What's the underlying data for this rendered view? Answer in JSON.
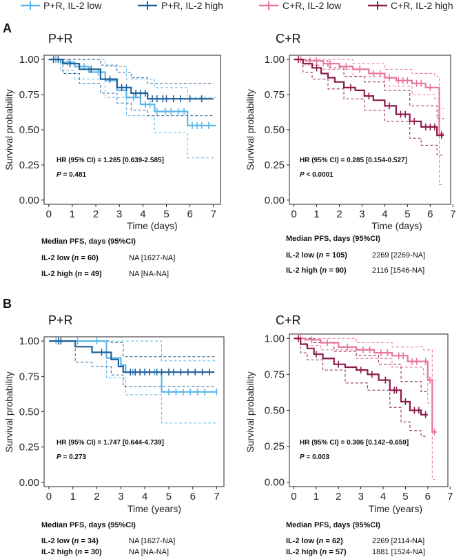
{
  "colors": {
    "pr_low": "#5bb6e8",
    "pr_high": "#1f5f97",
    "cr_low": "#e8739e",
    "cr_high": "#8b1a4a"
  },
  "legend": [
    {
      "label": "P+R, IL-2 low",
      "color": "#5bb6e8"
    },
    {
      "label": "P+R, IL-2 high",
      "color": "#1f5f97"
    },
    {
      "label": "C+R, IL-2 low",
      "color": "#e8739e"
    },
    {
      "label": "C+R, IL-2 high",
      "color": "#8b1a4a"
    }
  ],
  "panel_labels": [
    "A",
    "B"
  ],
  "chart_data": [
    {
      "type": "line",
      "id": "a_pr",
      "title": "P+R",
      "xlabel": "Time (days)",
      "ylabel": "Survival probability",
      "xlim": [
        -0.2,
        7.3
      ],
      "ylim": [
        -0.03,
        1.03
      ],
      "xticks": [
        0,
        1,
        2,
        3,
        4,
        5,
        6,
        7
      ],
      "yticks": [
        "0.00",
        "0.25",
        "0.50",
        "0.75",
        "1.00"
      ],
      "hr_text": "HR (95% CI) = 1.285 [0.639-2.585]",
      "p_label": "P",
      "p_text": " = 0.481",
      "median_title": "Median PFS, days  (95%CI)",
      "median_rows": [
        {
          "group": "IL-2 low (",
          "n": "n",
          "count": " = 60)",
          "value": "NA [1627-NA]"
        },
        {
          "group": "IL-2 high (",
          "n": "n",
          "count": " = 49)",
          "value": "NA [NA-NA]"
        }
      ],
      "series": [
        {
          "name": "P+R, IL-2 low",
          "color": "#5bb6e8",
          "width": 2.2,
          "x": [
            0,
            0.5,
            1.1,
            1.7,
            2.4,
            2.9,
            3.3,
            3.9,
            4.5,
            4.8,
            5.9,
            7.1
          ],
          "y": [
            1.0,
            0.98,
            0.95,
            0.91,
            0.85,
            0.78,
            0.73,
            0.68,
            0.63,
            0.63,
            0.53,
            0.53
          ],
          "censor": [
            0.3,
            0.8,
            1.5,
            2.1,
            3.6,
            4.1,
            4.3,
            4.6,
            4.95,
            5.2,
            5.5,
            5.75,
            6.1,
            6.3,
            6.5,
            6.8
          ]
        },
        {
          "name": "P+R, IL-2 high",
          "color": "#1f5f97",
          "width": 2.2,
          "x": [
            0,
            0.6,
            1.3,
            2.2,
            2.9,
            3.5,
            4.2,
            7.0
          ],
          "y": [
            1.0,
            0.97,
            0.93,
            0.86,
            0.8,
            0.76,
            0.72,
            0.72
          ],
          "censor": [
            0.2,
            0.4,
            0.9,
            1.8,
            2.6,
            3.1,
            3.3,
            3.7,
            3.9,
            4.1,
            4.4,
            4.6,
            4.85,
            5.0,
            5.3,
            5.6,
            6.0,
            6.5
          ]
        },
        {
          "name": "low CI upper",
          "color": "#5bb6e8",
          "width": 1,
          "dash": true,
          "x": [
            0,
            1.1,
            2.4,
            3.3,
            4.5,
            5.9,
            7.1
          ],
          "y": [
            1.0,
            1.0,
            0.95,
            0.86,
            0.8,
            0.73,
            0.73
          ]
        },
        {
          "name": "low CI lower",
          "color": "#5bb6e8",
          "width": 1,
          "dash": true,
          "x": [
            0,
            0.5,
            1.1,
            2.4,
            3.3,
            4.5,
            5.9,
            7.1
          ],
          "y": [
            1.0,
            0.92,
            0.86,
            0.73,
            0.6,
            0.48,
            0.3,
            0.3
          ]
        },
        {
          "name": "high CI upper",
          "color": "#1f5f97",
          "width": 1,
          "dash": true,
          "x": [
            0,
            1.3,
            2.2,
            2.9,
            3.5,
            4.2,
            7.0
          ],
          "y": [
            1.0,
            1.0,
            0.96,
            0.91,
            0.87,
            0.83,
            0.83
          ]
        },
        {
          "name": "high CI lower",
          "color": "#1f5f97",
          "width": 1,
          "dash": true,
          "x": [
            0,
            0.6,
            1.3,
            2.2,
            2.9,
            3.5,
            4.2,
            7.0
          ],
          "y": [
            1.0,
            0.9,
            0.83,
            0.76,
            0.69,
            0.64,
            0.6,
            0.6
          ]
        }
      ]
    },
    {
      "type": "line",
      "id": "a_cr",
      "title": "C+R",
      "xlabel": "Time (days)",
      "ylabel": "Survival probability",
      "xlim": [
        -0.2,
        6.9
      ],
      "ylim": [
        -0.03,
        1.03
      ],
      "xticks": [
        0,
        1,
        2,
        3,
        4,
        5,
        6,
        7
      ],
      "yticks": [
        "0.00",
        "0.25",
        "0.50",
        "0.75",
        "1.00"
      ],
      "hr_text": "HR (95% CI) = 0.285 [0.154-0.527]",
      "p_label": "P",
      "p_text": " < 0.0001",
      "median_title": "Median PFS, days (95%CI)",
      "median_rows": [
        {
          "group": "IL-2 low (",
          "n": "n",
          "count": " = 105)",
          "value": "2269 [2269-NA]"
        },
        {
          "group": "IL-2 high (",
          "n": "n",
          "count": " = 90)",
          "value": "2116 [1546-NA]"
        }
      ],
      "series": [
        {
          "name": "C+R, IL-2 low",
          "color": "#e8739e",
          "width": 2.2,
          "x": [
            0,
            0.5,
            1.3,
            2.0,
            2.6,
            3.3,
            4.0,
            4.5,
            5.2,
            5.8,
            6.2,
            6.4,
            6.6
          ],
          "y": [
            1.0,
            0.99,
            0.97,
            0.95,
            0.93,
            0.9,
            0.87,
            0.85,
            0.83,
            0.8,
            0.8,
            0.47,
            0.47
          ],
          "censor": [
            0.3,
            0.7,
            1.0,
            1.6,
            2.3,
            2.9,
            3.5,
            3.8,
            4.2,
            4.6,
            4.8,
            5.0,
            5.4,
            5.6,
            6.0,
            6.5
          ]
        },
        {
          "name": "C+R, IL-2 high",
          "color": "#8b1a4a",
          "width": 2.2,
          "x": [
            0,
            0.4,
            0.8,
            1.2,
            1.5,
            1.8,
            2.2,
            2.7,
            3.1,
            3.5,
            4.0,
            4.5,
            5.1,
            5.6,
            6.3,
            6.6
          ],
          "y": [
            1.0,
            0.97,
            0.94,
            0.9,
            0.87,
            0.84,
            0.8,
            0.78,
            0.74,
            0.71,
            0.67,
            0.61,
            0.56,
            0.52,
            0.46,
            0.46
          ],
          "censor": [
            0.2,
            1.0,
            2.5,
            3.3,
            4.2,
            4.7,
            4.9,
            5.3,
            5.8,
            6.0,
            6.2,
            6.5
          ]
        },
        {
          "name": "low CI upper",
          "color": "#e8739e",
          "width": 1,
          "dash": true,
          "x": [
            0,
            1.3,
            2.6,
            4.0,
            5.2,
            6.2,
            6.4,
            6.6
          ],
          "y": [
            1.0,
            1.0,
            0.97,
            0.93,
            0.9,
            0.88,
            0.65,
            0.65
          ]
        },
        {
          "name": "low CI lower",
          "color": "#e8739e",
          "width": 1,
          "dash": true,
          "x": [
            0,
            0.5,
            1.3,
            2.6,
            4.0,
            5.2,
            6.2,
            6.4,
            6.6
          ],
          "y": [
            1.0,
            0.96,
            0.93,
            0.88,
            0.81,
            0.75,
            0.72,
            0.11,
            0.11
          ]
        },
        {
          "name": "high CI upper",
          "color": "#8b1a4a",
          "width": 1,
          "dash": true,
          "x": [
            0,
            0.8,
            1.5,
            2.2,
            3.1,
            4.0,
            5.1,
            6.3,
            6.6
          ],
          "y": [
            1.0,
            0.99,
            0.94,
            0.88,
            0.84,
            0.78,
            0.67,
            0.58,
            0.58
          ]
        },
        {
          "name": "high CI lower",
          "color": "#8b1a4a",
          "width": 1,
          "dash": true,
          "x": [
            0,
            0.4,
            0.8,
            1.5,
            2.2,
            3.1,
            4.0,
            5.1,
            5.6,
            6.3,
            6.6
          ],
          "y": [
            1.0,
            0.91,
            0.86,
            0.79,
            0.72,
            0.64,
            0.56,
            0.44,
            0.39,
            0.32,
            0.32
          ]
        }
      ]
    },
    {
      "type": "line",
      "id": "b_pr",
      "title": "P+R",
      "xlabel": "Time (years)",
      "ylabel": "Survival probability",
      "xlim": [
        -0.2,
        7.3
      ],
      "ylim": [
        -0.03,
        1.03
      ],
      "xticks": [
        0,
        1,
        2,
        3,
        4,
        5,
        6,
        7
      ],
      "yticks": [
        "0.00",
        "0.25",
        "0.50",
        "0.75",
        "1.00"
      ],
      "hr_text": "HR (95% CI) = 1.747 [0.644-4.739]",
      "p_label": "P",
      "p_text": " = 0.273",
      "median_title": "Median PFS, days (95%CI)",
      "median_rows": [
        {
          "group": "IL-2 low (",
          "n": "n",
          "count": " = 34)",
          "value": "NA [1627-NA]"
        },
        {
          "group": "IL-2 high (",
          "n": "n",
          "count": " = 30)",
          "value": "NA [NA-NA]"
        }
      ],
      "series": [
        {
          "name": "P+R, IL-2 low",
          "color": "#5bb6e8",
          "width": 2.2,
          "x": [
            0,
            1.7,
            2.4,
            3.0,
            3.2,
            4.7,
            7.0
          ],
          "y": [
            1.0,
            1.0,
            0.88,
            0.83,
            0.78,
            0.64,
            0.64
          ],
          "censor": [
            0.3,
            1.2,
            2.0,
            3.5,
            4.0,
            4.4,
            5.0,
            5.3,
            5.6,
            5.9,
            6.2,
            6.5,
            7.0
          ]
        },
        {
          "name": "P+R, IL-2 high",
          "color": "#1f5f97",
          "width": 2.2,
          "x": [
            0,
            1.1,
            1.8,
            2.6,
            2.9,
            3.1,
            6.9
          ],
          "y": [
            1.0,
            0.96,
            0.92,
            0.87,
            0.82,
            0.78,
            0.78
          ],
          "censor": [
            0.4,
            0.5,
            2.2,
            3.4,
            3.6,
            3.8,
            4.0,
            4.2,
            4.5,
            4.7,
            5.0,
            5.2,
            5.5,
            5.8,
            6.1,
            6.4,
            6.7
          ]
        },
        {
          "name": "low CI upper",
          "color": "#5bb6e8",
          "width": 1,
          "dash": true,
          "x": [
            0,
            3.2,
            4.7,
            7.0
          ],
          "y": [
            1.0,
            1.0,
            0.86,
            0.86
          ]
        },
        {
          "name": "low CI lower",
          "color": "#5bb6e8",
          "width": 1,
          "dash": true,
          "x": [
            0,
            2.4,
            3.2,
            4.7,
            7.0
          ],
          "y": [
            1.0,
            0.74,
            0.62,
            0.42,
            0.42
          ]
        },
        {
          "name": "high CI upper",
          "color": "#1f5f97",
          "width": 1,
          "dash": true,
          "x": [
            0,
            2.6,
            3.1,
            6.9
          ],
          "y": [
            1.0,
            0.99,
            0.89,
            0.89
          ]
        },
        {
          "name": "high CI lower",
          "color": "#1f5f97",
          "width": 1,
          "dash": true,
          "x": [
            0,
            1.1,
            1.8,
            2.6,
            3.1,
            6.9
          ],
          "y": [
            1.0,
            0.85,
            0.82,
            0.76,
            0.68,
            0.68
          ]
        }
      ]
    },
    {
      "type": "line",
      "id": "b_cr",
      "title": "C+R",
      "xlabel": "Time (years)",
      "ylabel": "Survival probability",
      "xlim": [
        -0.2,
        6.9
      ],
      "ylim": [
        -0.03,
        1.03
      ],
      "xticks": [
        0,
        1,
        2,
        3,
        4,
        5,
        6,
        7
      ],
      "yticks": [
        "0.00",
        "0.25",
        "0.50",
        "0.75",
        "1.00"
      ],
      "hr_text": "HR (95% CI) = 0.306 [0.142–0.659]",
      "p_label": "P",
      "p_text": " = 0.003",
      "median_title": "Median PFS, days (95%CI)",
      "median_rows": [
        {
          "group": "IL-2 low (",
          "n": "n",
          "count": " = 62)",
          "value": "2269 [2114-NA]"
        },
        {
          "group": "IL-2 high (",
          "n": "n",
          "count": " = 57)",
          "value": "1881 [1524-NA]"
        }
      ],
      "series": [
        {
          "name": "C+R, IL-2 low",
          "color": "#e8739e",
          "width": 2.2,
          "x": [
            0,
            0.5,
            1.2,
            2.0,
            2.8,
            3.6,
            4.4,
            5.1,
            5.8,
            6.0,
            6.2,
            6.4
          ],
          "y": [
            1.0,
            0.99,
            0.97,
            0.94,
            0.92,
            0.9,
            0.88,
            0.84,
            0.84,
            0.71,
            0.35,
            0.35
          ],
          "censor": [
            0.3,
            0.8,
            1.5,
            2.4,
            3.1,
            3.4,
            3.9,
            4.2,
            4.7,
            4.9,
            5.3,
            5.5,
            5.9,
            6.1,
            6.3
          ]
        },
        {
          "name": "C+R, IL-2 high",
          "color": "#8b1a4a",
          "width": 2.2,
          "x": [
            0,
            0.3,
            0.6,
            0.9,
            1.3,
            1.8,
            2.3,
            2.8,
            3.3,
            3.8,
            4.3,
            4.8,
            5.2,
            5.7,
            6.0
          ],
          "y": [
            1.0,
            0.96,
            0.93,
            0.89,
            0.86,
            0.82,
            0.8,
            0.78,
            0.75,
            0.71,
            0.64,
            0.56,
            0.5,
            0.47,
            0.47
          ],
          "censor": [
            0.2,
            1.0,
            2.0,
            3.0,
            3.5,
            4.1,
            4.5,
            4.6,
            5.0,
            5.4,
            5.6,
            5.9
          ]
        },
        {
          "name": "low CI upper",
          "color": "#e8739e",
          "width": 1,
          "dash": true,
          "x": [
            0,
            1.2,
            2.8,
            4.4,
            5.8,
            6.2,
            6.4
          ],
          "y": [
            1.0,
            1.0,
            0.97,
            0.94,
            0.92,
            0.71,
            0.71
          ]
        },
        {
          "name": "low CI lower",
          "color": "#e8739e",
          "width": 1,
          "dash": true,
          "x": [
            0,
            0.5,
            1.2,
            2.8,
            4.4,
            5.8,
            6.0,
            6.2,
            6.4
          ],
          "y": [
            1.0,
            0.95,
            0.92,
            0.86,
            0.8,
            0.75,
            0.55,
            0.02,
            0.02
          ]
        },
        {
          "name": "high CI upper",
          "color": "#8b1a4a",
          "width": 1,
          "dash": true,
          "x": [
            0,
            0.9,
            1.8,
            2.8,
            3.8,
            4.8,
            5.7,
            6.0
          ],
          "y": [
            1.0,
            0.97,
            0.91,
            0.88,
            0.82,
            0.7,
            0.63,
            0.63
          ]
        },
        {
          "name": "high CI lower",
          "color": "#8b1a4a",
          "width": 1,
          "dash": true,
          "x": [
            0,
            0.3,
            0.6,
            1.3,
            2.3,
            3.3,
            4.3,
            4.8,
            5.2,
            5.7,
            6.0
          ],
          "y": [
            1.0,
            0.9,
            0.85,
            0.78,
            0.69,
            0.64,
            0.52,
            0.42,
            0.36,
            0.32,
            0.32
          ]
        }
      ]
    }
  ]
}
